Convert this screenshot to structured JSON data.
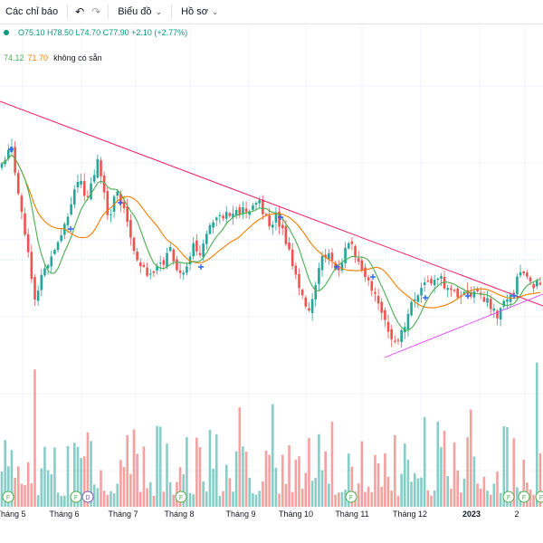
{
  "toolbar": {
    "indicators_label": "Các chỉ báo",
    "chart_label": "Biểu đồ",
    "profile_label": "Hồ sơ"
  },
  "legend": {
    "ohlc": "O75.10 H78.50 L74.70 C77.90 +2.10 (+2.77%)",
    "ma_fast": "74.12",
    "ma_slow": "71.70",
    "ma_note": "không có sẵn"
  },
  "colors": {
    "up": "#26a69a",
    "down": "#ef5350",
    "ma_fast": "#4caf50",
    "ma_slow": "#f57c00",
    "trendline_down": "#e91e63",
    "trendline_up": "#e040fb"
  },
  "chart_data": {
    "type": "candlestick",
    "x_ticks": [
      "Tháng 5",
      "Tháng 6",
      "Tháng 7",
      "Tháng 8",
      "Tháng 9",
      "Tháng 10",
      "Tháng 11",
      "Tháng 12",
      "2023",
      "2"
    ],
    "x_ticks_bold": [
      "2023"
    ],
    "event_markers": [
      "F",
      "F",
      "D",
      "F",
      "F",
      "F",
      "F",
      "F"
    ],
    "grid": true,
    "legend_position": "top-left"
  }
}
